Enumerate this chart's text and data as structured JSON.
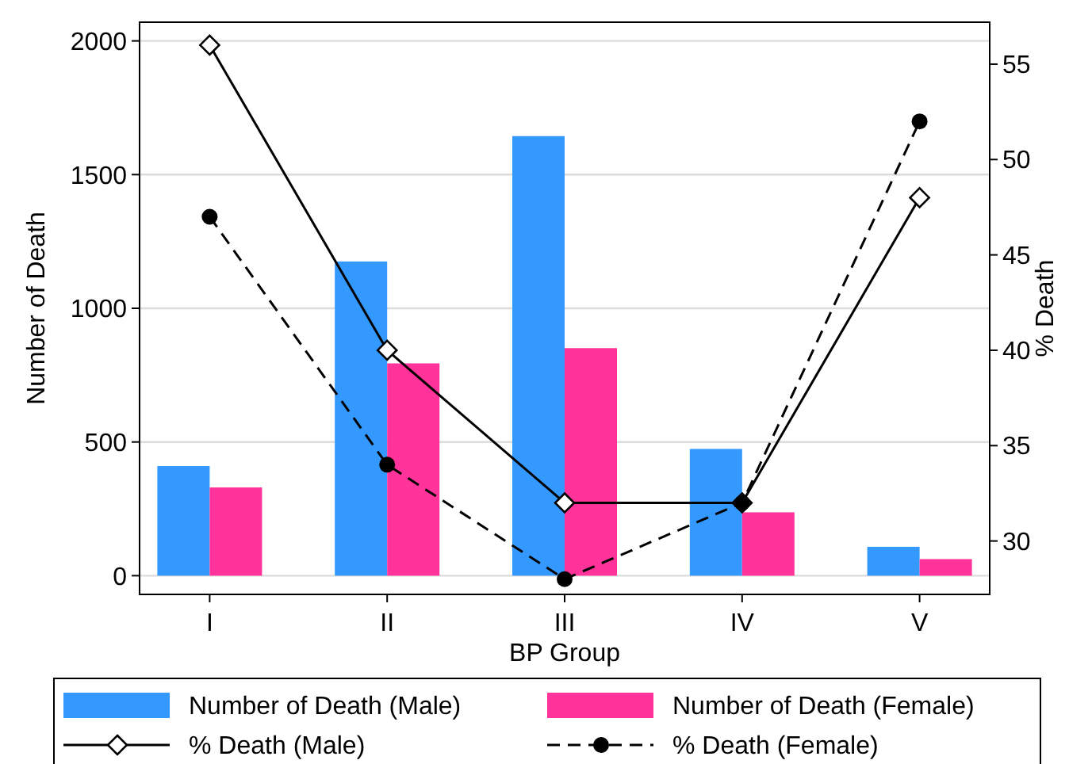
{
  "chart_data": {
    "type": "bar",
    "xlabel": "BP Group",
    "ylabel": "Number of Death",
    "y2label": "% Death",
    "categories": [
      "I",
      "II",
      "III",
      "IV",
      "V"
    ],
    "series": [
      {
        "name": "Number of Death (Male)",
        "color": "#3399ff",
        "values": [
          410,
          1175,
          1644,
          474,
          108
        ]
      },
      {
        "name": "Number of Death (Female)",
        "color": "#ff3399",
        "values": [
          330,
          794,
          851,
          237,
          62
        ]
      },
      {
        "name": "% Death (Male)",
        "type": "line",
        "axis": "y2",
        "color": "#000000",
        "marker": "diamond",
        "line_style": "solid",
        "values": [
          56,
          40,
          32,
          32,
          48
        ]
      },
      {
        "name": "% Death (Female)",
        "type": "line",
        "axis": "y2",
        "color": "#000000",
        "marker": "circle",
        "line_style": "dashed",
        "values": [
          47,
          34,
          28,
          32,
          52
        ]
      }
    ],
    "ylim": [
      -70,
      2070
    ],
    "yticks": [
      0,
      500,
      1000,
      1500,
      2000
    ],
    "y2lim": [
      27.2,
      57.2
    ],
    "y2ticks": [
      30,
      35,
      40,
      45,
      50,
      55
    ],
    "grid": "y",
    "legend": "bottom"
  }
}
